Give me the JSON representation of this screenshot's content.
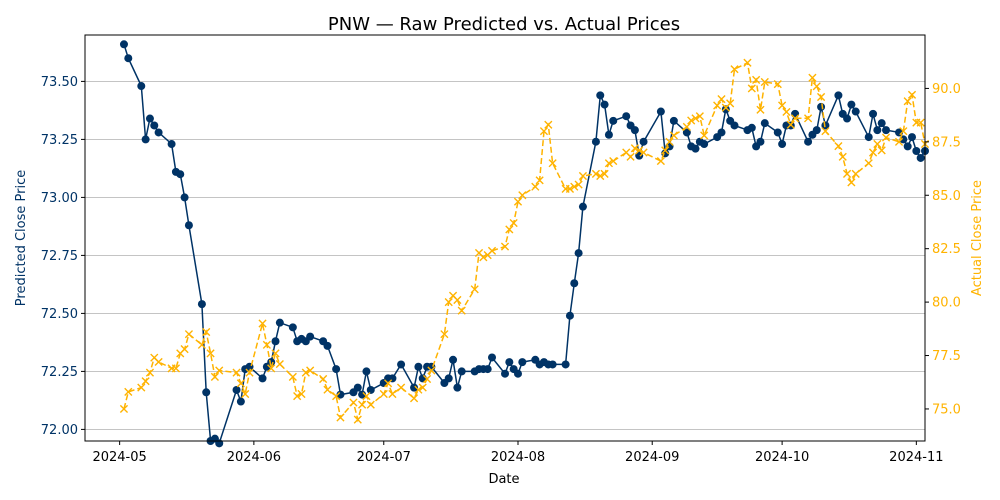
{
  "chart_data": {
    "type": "line",
    "title": "PNW — Raw Predicted vs. Actual Prices",
    "xlabel": "Date",
    "ylabel_left": "Predicted Close Price",
    "ylabel_right": "Actual Close Price",
    "colors": {
      "predicted": "#003366",
      "actual": "#ffb300",
      "grid": "#b0b0b0"
    },
    "grid": "horizontal (left axis)",
    "x_range": [
      "2024-04-23",
      "2024-11-03"
    ],
    "ylim_left": [
      71.95,
      73.7
    ],
    "ylim_right": [
      73.5,
      92.5
    ],
    "x_ticks": [
      {
        "date": "2024-05-01",
        "label": "2024-05"
      },
      {
        "date": "2024-06-01",
        "label": "2024-06"
      },
      {
        "date": "2024-07-01",
        "label": "2024-07"
      },
      {
        "date": "2024-08-01",
        "label": "2024-08"
      },
      {
        "date": "2024-09-01",
        "label": "2024-09"
      },
      {
        "date": "2024-10-01",
        "label": "2024-10"
      },
      {
        "date": "2024-11-01",
        "label": "2024-11"
      }
    ],
    "y_ticks_left": [
      "72.00",
      "72.25",
      "72.50",
      "72.75",
      "73.00",
      "73.25",
      "73.50"
    ],
    "y_ticks_right": [
      "75.0",
      "77.5",
      "80.0",
      "82.5",
      "85.0",
      "87.5",
      "90.0"
    ],
    "series": [
      {
        "axis": "left",
        "marker": "circle",
        "linestyle": "solid",
        "points": [
          [
            "2024-05-02",
            73.66
          ],
          [
            "2024-05-03",
            73.6
          ],
          [
            "2024-05-06",
            73.48
          ],
          [
            "2024-05-07",
            73.25
          ],
          [
            "2024-05-08",
            73.34
          ],
          [
            "2024-05-09",
            73.31
          ],
          [
            "2024-05-10",
            73.28
          ],
          [
            "2024-05-13",
            73.23
          ],
          [
            "2024-05-14",
            73.11
          ],
          [
            "2024-05-15",
            73.1
          ],
          [
            "2024-05-16",
            73.0
          ],
          [
            "2024-05-17",
            72.88
          ],
          [
            "2024-05-20",
            72.54
          ],
          [
            "2024-05-21",
            72.16
          ],
          [
            "2024-05-22",
            71.95
          ],
          [
            "2024-05-23",
            71.96
          ],
          [
            "2024-05-24",
            71.94
          ],
          [
            "2024-05-28",
            72.17
          ],
          [
            "2024-05-29",
            72.12
          ],
          [
            "2024-05-30",
            72.26
          ],
          [
            "2024-05-31",
            72.27
          ],
          [
            "2024-06-03",
            72.22
          ],
          [
            "2024-06-04",
            72.27
          ],
          [
            "2024-06-05",
            72.29
          ],
          [
            "2024-06-06",
            72.38
          ],
          [
            "2024-06-07",
            72.46
          ],
          [
            "2024-06-10",
            72.44
          ],
          [
            "2024-06-11",
            72.38
          ],
          [
            "2024-06-12",
            72.39
          ],
          [
            "2024-06-13",
            72.38
          ],
          [
            "2024-06-14",
            72.4
          ],
          [
            "2024-06-17",
            72.38
          ],
          [
            "2024-06-18",
            72.36
          ],
          [
            "2024-06-20",
            72.26
          ],
          [
            "2024-06-21",
            72.15
          ],
          [
            "2024-06-24",
            72.16
          ],
          [
            "2024-06-25",
            72.18
          ],
          [
            "2024-06-26",
            72.15
          ],
          [
            "2024-06-27",
            72.25
          ],
          [
            "2024-06-28",
            72.17
          ],
          [
            "2024-07-01",
            72.2
          ],
          [
            "2024-07-02",
            72.22
          ],
          [
            "2024-07-03",
            72.22
          ],
          [
            "2024-07-05",
            72.28
          ],
          [
            "2024-07-08",
            72.18
          ],
          [
            "2024-07-09",
            72.27
          ],
          [
            "2024-07-10",
            72.22
          ],
          [
            "2024-07-11",
            72.27
          ],
          [
            "2024-07-12",
            72.27
          ],
          [
            "2024-07-15",
            72.2
          ],
          [
            "2024-07-16",
            72.22
          ],
          [
            "2024-07-17",
            72.3
          ],
          [
            "2024-07-18",
            72.18
          ],
          [
            "2024-07-19",
            72.25
          ],
          [
            "2024-07-22",
            72.25
          ],
          [
            "2024-07-23",
            72.26
          ],
          [
            "2024-07-24",
            72.26
          ],
          [
            "2024-07-25",
            72.26
          ],
          [
            "2024-07-26",
            72.31
          ],
          [
            "2024-07-29",
            72.24
          ],
          [
            "2024-07-30",
            72.29
          ],
          [
            "2024-07-31",
            72.26
          ],
          [
            "2024-08-01",
            72.24
          ],
          [
            "2024-08-02",
            72.29
          ],
          [
            "2024-08-05",
            72.3
          ],
          [
            "2024-08-06",
            72.28
          ],
          [
            "2024-08-07",
            72.29
          ],
          [
            "2024-08-08",
            72.28
          ],
          [
            "2024-08-09",
            72.28
          ],
          [
            "2024-08-12",
            72.28
          ],
          [
            "2024-08-13",
            72.49
          ],
          [
            "2024-08-14",
            72.63
          ],
          [
            "2024-08-15",
            72.76
          ],
          [
            "2024-08-16",
            72.96
          ],
          [
            "2024-08-19",
            73.24
          ],
          [
            "2024-08-20",
            73.44
          ],
          [
            "2024-08-21",
            73.4
          ],
          [
            "2024-08-22",
            73.27
          ],
          [
            "2024-08-23",
            73.33
          ],
          [
            "2024-08-26",
            73.35
          ],
          [
            "2024-08-27",
            73.31
          ],
          [
            "2024-08-28",
            73.29
          ],
          [
            "2024-08-29",
            73.18
          ],
          [
            "2024-08-30",
            73.24
          ],
          [
            "2024-09-03",
            73.37
          ],
          [
            "2024-09-04",
            73.19
          ],
          [
            "2024-09-05",
            73.22
          ],
          [
            "2024-09-06",
            73.33
          ],
          [
            "2024-09-09",
            73.28
          ],
          [
            "2024-09-10",
            73.22
          ],
          [
            "2024-09-11",
            73.21
          ],
          [
            "2024-09-12",
            73.24
          ],
          [
            "2024-09-13",
            73.23
          ],
          [
            "2024-09-16",
            73.26
          ],
          [
            "2024-09-17",
            73.28
          ],
          [
            "2024-09-18",
            73.38
          ],
          [
            "2024-09-19",
            73.33
          ],
          [
            "2024-09-20",
            73.31
          ],
          [
            "2024-09-23",
            73.29
          ],
          [
            "2024-09-24",
            73.3
          ],
          [
            "2024-09-25",
            73.22
          ],
          [
            "2024-09-26",
            73.24
          ],
          [
            "2024-09-27",
            73.32
          ],
          [
            "2024-09-30",
            73.28
          ],
          [
            "2024-10-01",
            73.23
          ],
          [
            "2024-10-02",
            73.31
          ],
          [
            "2024-10-03",
            73.31
          ],
          [
            "2024-10-04",
            73.36
          ],
          [
            "2024-10-07",
            73.24
          ],
          [
            "2024-10-08",
            73.27
          ],
          [
            "2024-10-09",
            73.29
          ],
          [
            "2024-10-10",
            73.39
          ],
          [
            "2024-10-11",
            73.31
          ],
          [
            "2024-10-14",
            73.44
          ],
          [
            "2024-10-15",
            73.36
          ],
          [
            "2024-10-16",
            73.34
          ],
          [
            "2024-10-17",
            73.4
          ],
          [
            "2024-10-18",
            73.37
          ],
          [
            "2024-10-21",
            73.26
          ],
          [
            "2024-10-22",
            73.36
          ],
          [
            "2024-10-23",
            73.29
          ],
          [
            "2024-10-24",
            73.32
          ],
          [
            "2024-10-25",
            73.29
          ],
          [
            "2024-10-28",
            73.28
          ],
          [
            "2024-10-29",
            73.25
          ],
          [
            "2024-10-30",
            73.22
          ],
          [
            "2024-10-31",
            73.26
          ],
          [
            "2024-11-01",
            73.2
          ],
          [
            "2024-11-02",
            73.17
          ],
          [
            "2024-11-03",
            73.2
          ]
        ]
      },
      {
        "axis": "right",
        "marker": "x",
        "linestyle": "dashed",
        "points": [
          [
            "2024-05-02",
            75.0
          ],
          [
            "2024-05-03",
            75.8
          ],
          [
            "2024-05-06",
            76.0
          ],
          [
            "2024-05-07",
            76.3
          ],
          [
            "2024-05-08",
            76.7
          ],
          [
            "2024-05-09",
            77.4
          ],
          [
            "2024-05-10",
            77.2
          ],
          [
            "2024-05-13",
            76.9
          ],
          [
            "2024-05-14",
            76.9
          ],
          [
            "2024-05-15",
            77.6
          ],
          [
            "2024-05-16",
            77.8
          ],
          [
            "2024-05-17",
            78.5
          ],
          [
            "2024-05-20",
            78.0
          ],
          [
            "2024-05-21",
            78.6
          ],
          [
            "2024-05-22",
            77.6
          ],
          [
            "2024-05-23",
            76.5
          ],
          [
            "2024-05-24",
            76.8
          ],
          [
            "2024-05-28",
            76.7
          ],
          [
            "2024-05-29",
            76.2
          ],
          [
            "2024-05-30",
            75.7
          ],
          [
            "2024-05-31",
            76.7
          ],
          [
            "2024-06-03",
            79.0
          ],
          [
            "2024-06-04",
            78.0
          ],
          [
            "2024-06-05",
            76.9
          ],
          [
            "2024-06-06",
            77.6
          ],
          [
            "2024-06-07",
            77.1
          ],
          [
            "2024-06-10",
            76.5
          ],
          [
            "2024-06-11",
            75.6
          ],
          [
            "2024-06-12",
            75.7
          ],
          [
            "2024-06-13",
            76.7
          ],
          [
            "2024-06-14",
            76.8
          ],
          [
            "2024-06-17",
            76.4
          ],
          [
            "2024-06-18",
            75.9
          ],
          [
            "2024-06-20",
            75.6
          ],
          [
            "2024-06-21",
            74.6
          ],
          [
            "2024-06-24",
            75.3
          ],
          [
            "2024-06-25",
            74.5
          ],
          [
            "2024-06-26",
            75.2
          ],
          [
            "2024-06-27",
            75.6
          ],
          [
            "2024-06-28",
            75.2
          ],
          [
            "2024-07-01",
            75.7
          ],
          [
            "2024-07-02",
            76.2
          ],
          [
            "2024-07-03",
            75.7
          ],
          [
            "2024-07-05",
            76.0
          ],
          [
            "2024-07-08",
            75.5
          ],
          [
            "2024-07-09",
            75.9
          ],
          [
            "2024-07-10",
            76.0
          ],
          [
            "2024-07-11",
            76.4
          ],
          [
            "2024-07-12",
            76.8
          ],
          [
            "2024-07-15",
            78.5
          ],
          [
            "2024-07-16",
            80.0
          ],
          [
            "2024-07-17",
            80.3
          ],
          [
            "2024-07-18",
            80.1
          ],
          [
            "2024-07-19",
            79.6
          ],
          [
            "2024-07-22",
            80.6
          ],
          [
            "2024-07-23",
            82.3
          ],
          [
            "2024-07-24",
            82.1
          ],
          [
            "2024-07-25",
            82.2
          ],
          [
            "2024-07-26",
            82.4
          ],
          [
            "2024-07-29",
            82.6
          ],
          [
            "2024-07-30",
            83.4
          ],
          [
            "2024-07-31",
            83.7
          ],
          [
            "2024-08-01",
            84.7
          ],
          [
            "2024-08-02",
            85.0
          ],
          [
            "2024-08-05",
            85.4
          ],
          [
            "2024-08-06",
            85.7
          ],
          [
            "2024-08-07",
            88.0
          ],
          [
            "2024-08-08",
            88.3
          ],
          [
            "2024-08-09",
            86.5
          ],
          [
            "2024-08-12",
            85.3
          ],
          [
            "2024-08-13",
            85.3
          ],
          [
            "2024-08-14",
            85.4
          ],
          [
            "2024-08-15",
            85.5
          ],
          [
            "2024-08-16",
            85.9
          ],
          [
            "2024-08-19",
            86.0
          ],
          [
            "2024-08-20",
            85.9
          ],
          [
            "2024-08-21",
            86.0
          ],
          [
            "2024-08-22",
            86.5
          ],
          [
            "2024-08-23",
            86.6
          ],
          [
            "2024-08-26",
            87.0
          ],
          [
            "2024-08-27",
            86.8
          ],
          [
            "2024-08-28",
            87.2
          ],
          [
            "2024-08-29",
            87.1
          ],
          [
            "2024-08-30",
            87.0
          ],
          [
            "2024-09-03",
            86.6
          ],
          [
            "2024-09-04",
            87.1
          ],
          [
            "2024-09-05",
            87.5
          ],
          [
            "2024-09-06",
            87.8
          ],
          [
            "2024-09-09",
            88.2
          ],
          [
            "2024-09-10",
            88.5
          ],
          [
            "2024-09-11",
            88.6
          ],
          [
            "2024-09-12",
            88.7
          ],
          [
            "2024-09-13",
            87.8
          ],
          [
            "2024-09-16",
            89.2
          ],
          [
            "2024-09-17",
            89.5
          ],
          [
            "2024-09-18",
            89.1
          ],
          [
            "2024-09-19",
            89.3
          ],
          [
            "2024-09-20",
            90.9
          ],
          [
            "2024-09-23",
            91.2
          ],
          [
            "2024-09-24",
            90.0
          ],
          [
            "2024-09-25",
            90.4
          ],
          [
            "2024-09-26",
            89.0
          ],
          [
            "2024-09-27",
            90.3
          ],
          [
            "2024-09-30",
            90.2
          ],
          [
            "2024-10-01",
            89.2
          ],
          [
            "2024-10-02",
            88.9
          ],
          [
            "2024-10-03",
            88.3
          ],
          [
            "2024-10-04",
            88.6
          ],
          [
            "2024-10-07",
            88.6
          ],
          [
            "2024-10-08",
            90.5
          ],
          [
            "2024-10-09",
            90.1
          ],
          [
            "2024-10-10",
            89.6
          ],
          [
            "2024-10-11",
            88.0
          ],
          [
            "2024-10-14",
            87.3
          ],
          [
            "2024-10-15",
            86.8
          ],
          [
            "2024-10-16",
            86.0
          ],
          [
            "2024-10-17",
            85.6
          ],
          [
            "2024-10-18",
            86.0
          ],
          [
            "2024-10-21",
            86.5
          ],
          [
            "2024-10-22",
            87.0
          ],
          [
            "2024-10-23",
            87.4
          ],
          [
            "2024-10-24",
            87.1
          ],
          [
            "2024-10-25",
            87.7
          ],
          [
            "2024-10-28",
            87.5
          ],
          [
            "2024-10-29",
            88.0
          ],
          [
            "2024-10-30",
            89.4
          ],
          [
            "2024-10-31",
            89.7
          ],
          [
            "2024-11-01",
            88.4
          ],
          [
            "2024-11-02",
            88.4
          ],
          [
            "2024-11-03",
            87.4
          ]
        ]
      }
    ]
  }
}
